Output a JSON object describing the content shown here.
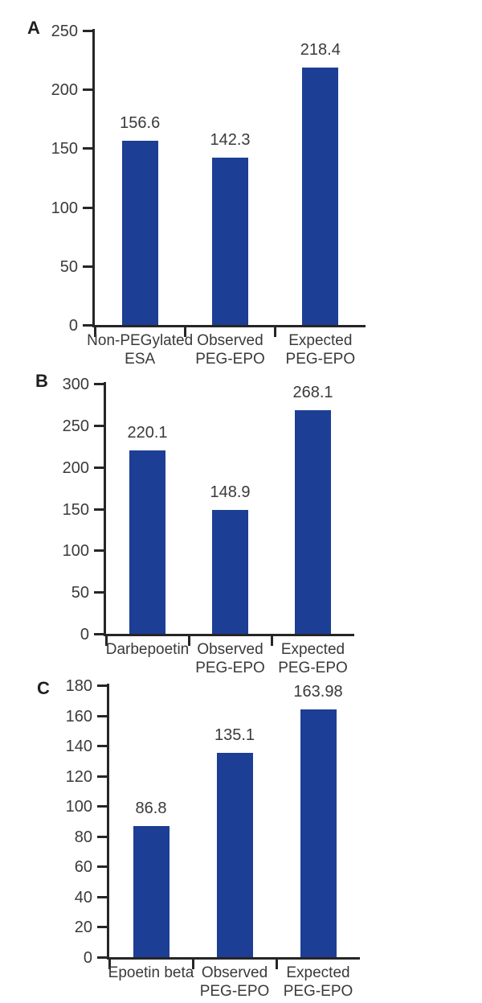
{
  "figure": {
    "description": "Three-panel vertical bar chart figure comparing ESA doses with observed and expected PEG-EPO",
    "background_color": "#ffffff",
    "bar_color": "#1c3e95",
    "axis_color": "#262626",
    "label_color": "#3a3a3a",
    "panel_letter_color": "#1f1f1f",
    "panel_letters": [
      "A",
      "B",
      "C"
    ]
  },
  "chart_data": [
    {
      "type": "bar",
      "panel": "A",
      "title": "",
      "xlabel": "",
      "ylabel": "",
      "categories": [
        "Non-PEGylated\nESA",
        "Observed\nPEG-EPO",
        "Expected\nPEG-EPO"
      ],
      "values": [
        156.6,
        142.3,
        218.4
      ],
      "value_labels": [
        "156.6",
        "142.3",
        "218.4"
      ],
      "ylim": [
        0,
        250
      ],
      "yticks": [
        0,
        50,
        100,
        150,
        200,
        250
      ],
      "grid": false,
      "legend": null
    },
    {
      "type": "bar",
      "panel": "B",
      "title": "",
      "xlabel": "",
      "ylabel": "",
      "categories": [
        "Darbepoetin",
        "Observed\nPEG-EPO",
        "Expected\nPEG-EPO"
      ],
      "values": [
        220.1,
        148.9,
        268.1
      ],
      "value_labels": [
        "220.1",
        "148.9",
        "268.1"
      ],
      "ylim": [
        0,
        300
      ],
      "yticks": [
        0,
        50,
        100,
        150,
        200,
        250,
        300
      ],
      "grid": false,
      "legend": null
    },
    {
      "type": "bar",
      "panel": "C",
      "title": "",
      "xlabel": "",
      "ylabel": "",
      "categories": [
        "Epoetin beta",
        "Observed\nPEG-EPO",
        "Expected\nPEG-EPO"
      ],
      "values": [
        86.8,
        135.1,
        163.98
      ],
      "value_labels": [
        "86.8",
        "135.1",
        "163.98"
      ],
      "ylim": [
        0,
        180
      ],
      "yticks": [
        0,
        20,
        40,
        60,
        80,
        100,
        120,
        140,
        160,
        180
      ],
      "grid": false,
      "legend": null
    }
  ]
}
